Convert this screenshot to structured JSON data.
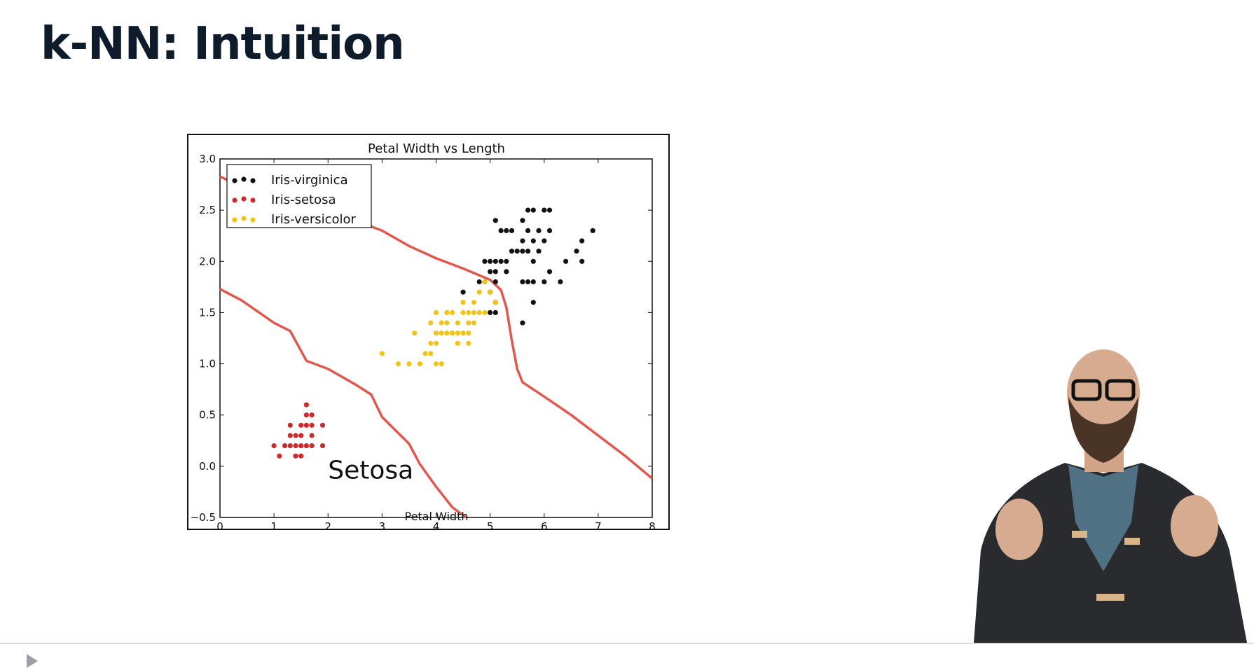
{
  "slide": {
    "title": "k-NN: Intuition"
  },
  "chart_data": {
    "type": "scatter",
    "title": "Petal Width vs Length",
    "xlabel": "Petal Width",
    "ylabel": "",
    "xlim": [
      0,
      8
    ],
    "ylim": [
      -0.5,
      3.0
    ],
    "xticks": [
      "0",
      "1",
      "2",
      "3",
      "4",
      "5",
      "6",
      "7",
      "8"
    ],
    "yticks": [
      "−0.5",
      "0.0",
      "0.5",
      "1.0",
      "1.5",
      "2.0",
      "2.5",
      "3.0"
    ],
    "xtick_values": [
      0,
      1,
      2,
      3,
      4,
      5,
      6,
      7,
      8
    ],
    "ytick_values": [
      -0.5,
      0,
      0.5,
      1.0,
      1.5,
      2.0,
      2.5,
      3.0
    ],
    "grid": false,
    "legend_position": "top-left",
    "annotation": "Setosa",
    "annotation_position": [
      2.0,
      -0.12
    ],
    "series": [
      {
        "name": "Iris-virginica",
        "color": "#111111",
        "points": [
          [
            4.5,
            1.7
          ],
          [
            4.9,
            2.0
          ],
          [
            5.0,
            2.0
          ],
          [
            5.1,
            2.0
          ],
          [
            5.2,
            2.0
          ],
          [
            5.3,
            2.0
          ],
          [
            5.0,
            1.9
          ],
          [
            5.1,
            1.9
          ],
          [
            5.3,
            1.9
          ],
          [
            4.9,
            1.8
          ],
          [
            5.1,
            1.8
          ],
          [
            5.6,
            1.8
          ],
          [
            5.7,
            1.8
          ],
          [
            5.8,
            1.8
          ],
          [
            6.0,
            1.8
          ],
          [
            6.3,
            1.8
          ],
          [
            5.0,
            1.5
          ],
          [
            5.1,
            1.5
          ],
          [
            5.2,
            2.3
          ],
          [
            5.3,
            2.3
          ],
          [
            5.4,
            2.3
          ],
          [
            5.6,
            2.4
          ],
          [
            5.7,
            2.3
          ],
          [
            6.1,
            2.3
          ],
          [
            6.9,
            2.3
          ],
          [
            5.6,
            2.2
          ],
          [
            6.0,
            2.2
          ],
          [
            6.7,
            2.2
          ],
          [
            5.4,
            2.1
          ],
          [
            5.5,
            2.1
          ],
          [
            5.6,
            2.1
          ],
          [
            5.7,
            2.1
          ],
          [
            5.9,
            2.1
          ],
          [
            6.6,
            2.1
          ],
          [
            5.1,
            2.4
          ],
          [
            5.8,
            2.0
          ],
          [
            6.1,
            1.9
          ],
          [
            6.4,
            2.0
          ],
          [
            6.7,
            2.0
          ],
          [
            5.8,
            2.5
          ],
          [
            6.0,
            2.5
          ],
          [
            6.1,
            2.5
          ],
          [
            5.7,
            2.5
          ],
          [
            5.8,
            2.2
          ],
          [
            5.9,
            2.3
          ],
          [
            5.6,
            1.4
          ],
          [
            5.8,
            1.6
          ],
          [
            5.0,
            1.7
          ],
          [
            5.1,
            1.6
          ],
          [
            4.8,
            1.8
          ]
        ]
      },
      {
        "name": "Iris-setosa",
        "color": "#cc2b2b",
        "points": [
          [
            1.6,
            0.6
          ],
          [
            1.3,
            0.4
          ],
          [
            1.5,
            0.4
          ],
          [
            1.6,
            0.4
          ],
          [
            1.7,
            0.4
          ],
          [
            1.9,
            0.4
          ],
          [
            1.3,
            0.3
          ],
          [
            1.4,
            0.3
          ],
          [
            1.5,
            0.3
          ],
          [
            1.7,
            0.3
          ],
          [
            1.3,
            0.2
          ],
          [
            1.4,
            0.2
          ],
          [
            1.5,
            0.2
          ],
          [
            1.6,
            0.2
          ],
          [
            1.7,
            0.2
          ],
          [
            1.9,
            0.2
          ],
          [
            1.0,
            0.2
          ],
          [
            1.2,
            0.2
          ],
          [
            1.4,
            0.1
          ],
          [
            1.5,
            0.1
          ],
          [
            1.1,
            0.1
          ],
          [
            1.6,
            0.5
          ],
          [
            1.7,
            0.5
          ]
        ]
      },
      {
        "name": "Iris-versicolor",
        "color": "#f0c419",
        "points": [
          [
            3.0,
            1.1
          ],
          [
            3.3,
            1.0
          ],
          [
            3.5,
            1.0
          ],
          [
            3.7,
            1.0
          ],
          [
            4.0,
            1.0
          ],
          [
            4.1,
            1.0
          ],
          [
            3.8,
            1.1
          ],
          [
            3.9,
            1.1
          ],
          [
            3.9,
            1.2
          ],
          [
            4.0,
            1.2
          ],
          [
            4.4,
            1.2
          ],
          [
            4.6,
            1.2
          ],
          [
            4.0,
            1.3
          ],
          [
            4.1,
            1.3
          ],
          [
            4.2,
            1.3
          ],
          [
            4.3,
            1.3
          ],
          [
            4.4,
            1.3
          ],
          [
            4.5,
            1.3
          ],
          [
            4.6,
            1.3
          ],
          [
            3.6,
            1.3
          ],
          [
            4.0,
            1.3
          ],
          [
            4.1,
            1.4
          ],
          [
            4.2,
            1.4
          ],
          [
            4.4,
            1.4
          ],
          [
            4.6,
            1.4
          ],
          [
            4.7,
            1.4
          ],
          [
            4.5,
            1.5
          ],
          [
            4.6,
            1.5
          ],
          [
            4.7,
            1.5
          ],
          [
            4.8,
            1.5
          ],
          [
            4.9,
            1.5
          ],
          [
            4.5,
            1.6
          ],
          [
            4.7,
            1.6
          ],
          [
            5.0,
            1.7
          ],
          [
            5.1,
            1.6
          ],
          [
            4.9,
            1.8
          ],
          [
            4.8,
            1.7
          ],
          [
            3.9,
            1.4
          ],
          [
            4.3,
            1.5
          ],
          [
            4.0,
            1.5
          ],
          [
            4.2,
            1.5
          ]
        ]
      }
    ],
    "decision_boundaries": [
      {
        "color": "#e0584d",
        "points": [
          [
            0,
            1.73
          ],
          [
            0.4,
            1.62
          ],
          [
            1.0,
            1.4
          ],
          [
            1.3,
            1.32
          ],
          [
            1.6,
            1.03
          ],
          [
            2.0,
            0.95
          ],
          [
            2.5,
            0.8
          ],
          [
            2.8,
            0.7
          ],
          [
            3.0,
            0.48
          ],
          [
            3.5,
            0.22
          ],
          [
            3.7,
            0.02
          ],
          [
            4.0,
            -0.2
          ],
          [
            4.3,
            -0.4
          ],
          [
            4.55,
            -0.5
          ]
        ]
      },
      {
        "color": "#e0584d",
        "points": [
          [
            0,
            2.83
          ],
          [
            0.3,
            2.75
          ],
          [
            1.0,
            2.6
          ],
          [
            2.5,
            2.4
          ],
          [
            3.0,
            2.3
          ],
          [
            3.5,
            2.15
          ],
          [
            4.0,
            2.03
          ],
          [
            4.5,
            1.93
          ],
          [
            5.0,
            1.82
          ],
          [
            5.2,
            1.72
          ],
          [
            5.3,
            1.55
          ],
          [
            5.4,
            1.23
          ],
          [
            5.5,
            0.95
          ],
          [
            5.6,
            0.82
          ],
          [
            6.0,
            0.68
          ],
          [
            6.5,
            0.5
          ],
          [
            7.0,
            0.3
          ],
          [
            7.5,
            0.1
          ],
          [
            8.0,
            -0.12
          ]
        ]
      }
    ]
  }
}
